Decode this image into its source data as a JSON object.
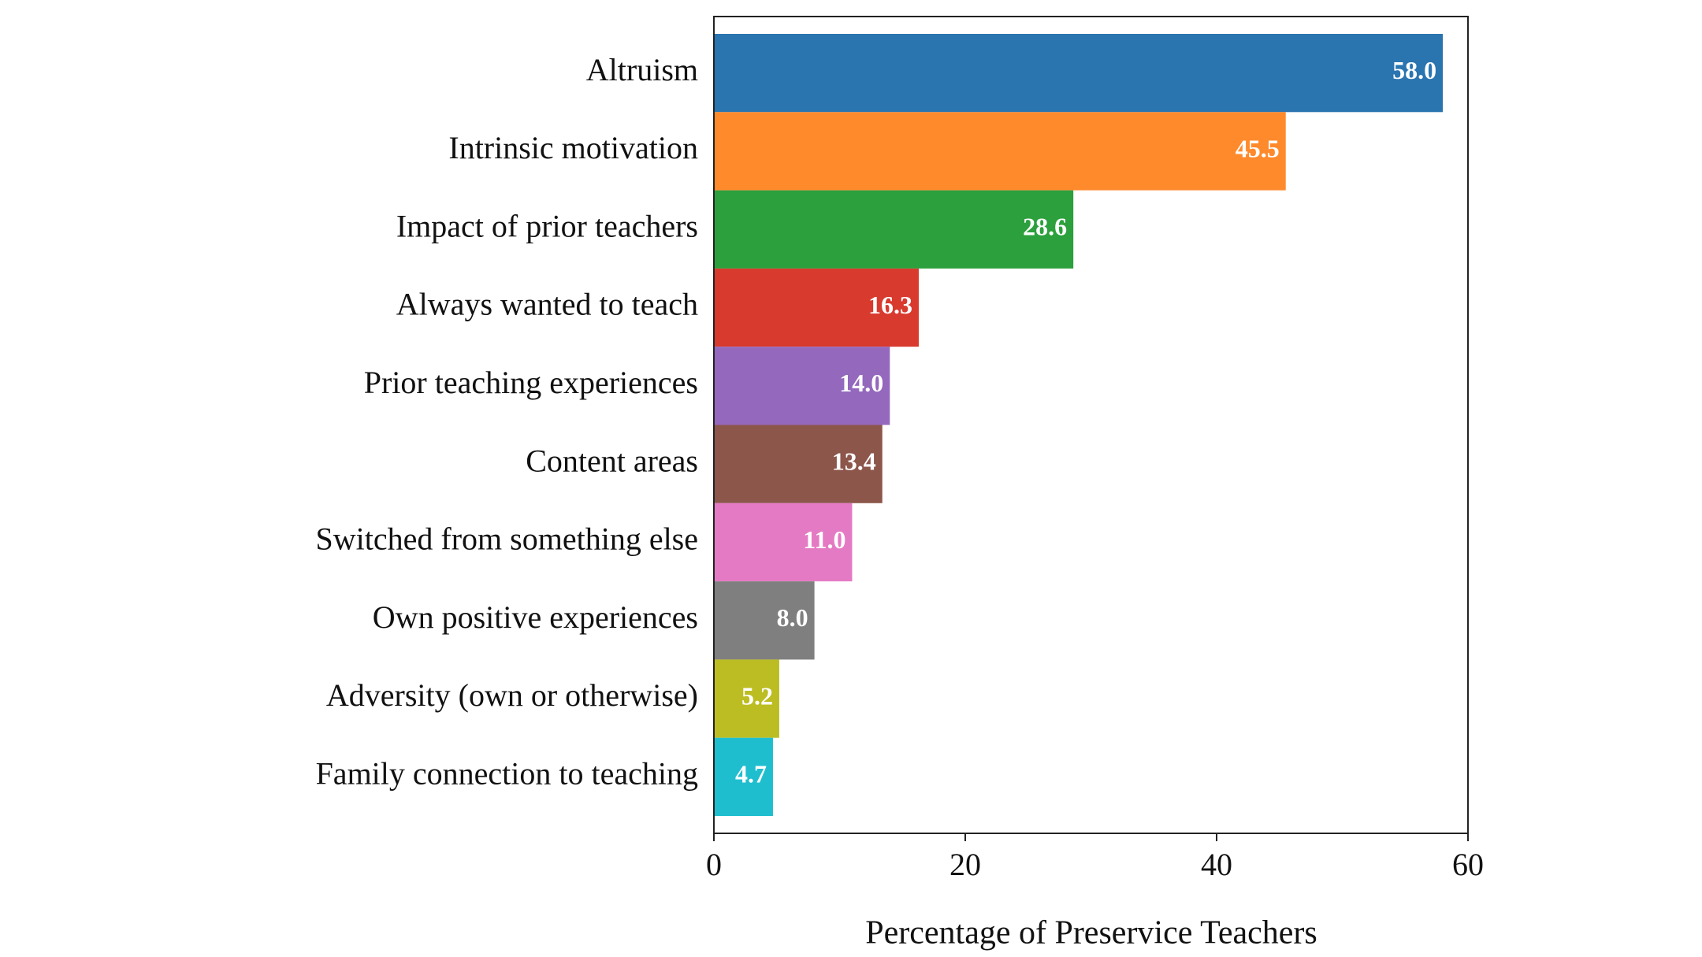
{
  "chart_data": {
    "type": "barh",
    "categories": [
      "Altruism",
      "Intrinsic motivation",
      "Impact of prior teachers",
      "Always wanted to teach",
      "Prior teaching experiences",
      "Content areas",
      "Switched from something else",
      "Own positive experiences",
      "Adversity (own or otherwise)",
      "Family connection to teaching"
    ],
    "values": [
      58.0,
      45.5,
      28.6,
      16.3,
      14.0,
      13.4,
      11.0,
      8.0,
      5.2,
      4.7
    ],
    "value_labels": [
      "58.0",
      "45.5",
      "28.6",
      "16.3",
      "14.0",
      "13.4",
      "11.0",
      "8.0",
      "5.2",
      "4.7"
    ],
    "colors": [
      "#2a74b0",
      "#ff8a2c",
      "#2ca03c",
      "#d83a2e",
      "#9468bd",
      "#8c564b",
      "#e57ac4",
      "#7f7f7f",
      "#bcbd22",
      "#1fbecf"
    ],
    "xlabel": "Percentage of Preservice Teachers",
    "xlim": [
      0,
      60
    ],
    "xticks": [
      0,
      20,
      40,
      60
    ],
    "grid": false
  }
}
